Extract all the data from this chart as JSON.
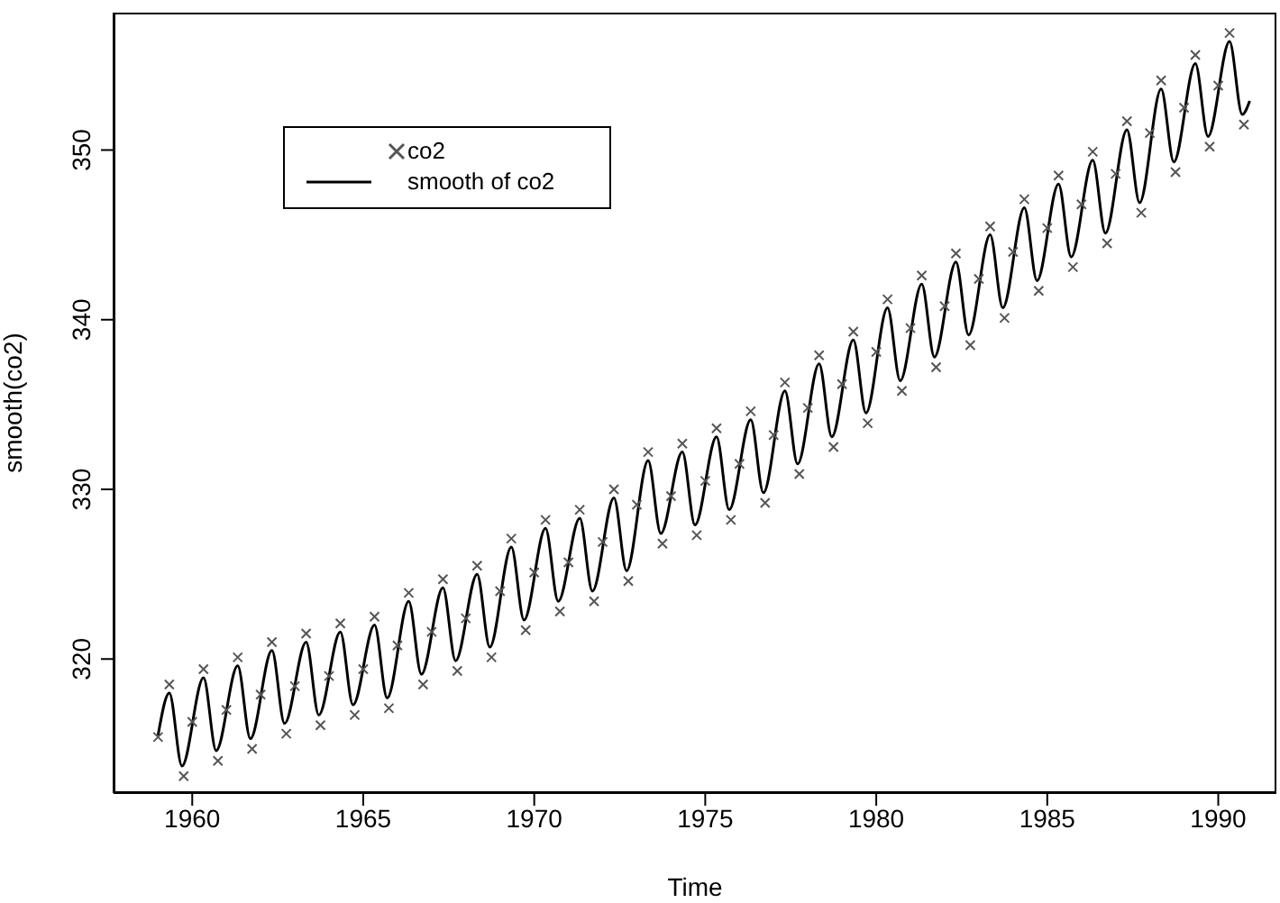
{
  "chart_data": {
    "type": "scatter",
    "xlabel": "Time",
    "ylabel": "smooth(co2)",
    "xlim": [
      1957.7,
      1991.7
    ],
    "xticks": [
      1960,
      1965,
      1970,
      1975,
      1980,
      1985,
      1990
    ],
    "ylim": [
      312.1,
      358.1
    ],
    "yticks": [
      320,
      330,
      340,
      350
    ],
    "legend": "top left",
    "grid": false,
    "series": [
      {
        "name": "co2",
        "type": "scatter",
        "marker": "cross",
        "color": "#555555",
        "x": [
          1959,
          1959.33,
          1959.75,
          1960,
          1960.33,
          1960.75,
          1961,
          1961.33,
          1961.75,
          1962,
          1962.33,
          1962.75,
          1963,
          1963.33,
          1963.75,
          1964,
          1964.33,
          1964.75,
          1965,
          1965.33,
          1965.75,
          1966,
          1966.33,
          1966.75,
          1967,
          1967.33,
          1967.75,
          1968,
          1968.33,
          1968.75,
          1969,
          1969.33,
          1969.75,
          1970,
          1970.33,
          1970.75,
          1971,
          1971.33,
          1971.75,
          1972,
          1972.33,
          1972.75,
          1973,
          1973.33,
          1973.75,
          1974,
          1974.33,
          1974.75,
          1975,
          1975.33,
          1975.75,
          1976,
          1976.33,
          1976.75,
          1977,
          1977.33,
          1977.75,
          1978,
          1978.33,
          1978.75,
          1979,
          1979.33,
          1979.75,
          1980,
          1980.33,
          1980.75,
          1981,
          1981.33,
          1981.75,
          1982,
          1982.33,
          1982.75,
          1983,
          1983.33,
          1983.75,
          1984,
          1984.33,
          1984.75,
          1985,
          1985.33,
          1985.75,
          1986,
          1986.33,
          1986.75,
          1987,
          1987.33,
          1987.75,
          1988,
          1988.33,
          1988.75,
          1989,
          1989.33,
          1989.75,
          1990,
          1990.33,
          1990.75
        ],
        "values": [
          315.4,
          318.5,
          313.1,
          316.3,
          319.4,
          314.0,
          317.0,
          320.1,
          314.7,
          317.9,
          321.0,
          315.6,
          318.4,
          321.5,
          316.1,
          319.0,
          322.1,
          316.7,
          319.4,
          322.5,
          317.1,
          320.8,
          323.9,
          318.5,
          321.6,
          324.7,
          319.3,
          322.4,
          325.5,
          320.1,
          324.0,
          327.1,
          321.7,
          325.1,
          328.2,
          322.8,
          325.7,
          328.8,
          323.4,
          326.9,
          330.0,
          324.6,
          329.1,
          332.2,
          326.8,
          329.6,
          332.7,
          327.3,
          330.5,
          333.6,
          328.2,
          331.5,
          334.6,
          329.2,
          333.2,
          336.3,
          330.9,
          334.8,
          337.9,
          332.5,
          336.2,
          339.3,
          333.9,
          338.1,
          341.2,
          335.8,
          339.5,
          342.6,
          337.2,
          340.8,
          343.9,
          338.5,
          342.4,
          345.5,
          340.1,
          344.0,
          347.1,
          341.7,
          345.4,
          348.5,
          343.1,
          346.8,
          349.9,
          344.5,
          348.6,
          351.7,
          346.3,
          351.0,
          354.1,
          348.7,
          352.5,
          355.6,
          350.2,
          353.8,
          356.9,
          351.5
        ]
      },
      {
        "name": "smooth of co2",
        "type": "line",
        "color": "#000000",
        "x": [
          1959,
          1959.33,
          1959.7,
          1960.33,
          1960.7,
          1961.33,
          1961.7,
          1962.33,
          1962.7,
          1963.33,
          1963.7,
          1964.33,
          1964.7,
          1965.33,
          1965.7,
          1966.33,
          1966.7,
          1967.33,
          1967.7,
          1968.33,
          1968.7,
          1969.33,
          1969.7,
          1970.33,
          1970.7,
          1971.33,
          1971.7,
          1972.33,
          1972.7,
          1973.33,
          1973.7,
          1974.33,
          1974.7,
          1975.33,
          1975.7,
          1976.33,
          1976.7,
          1977.33,
          1977.7,
          1978.33,
          1978.7,
          1979.33,
          1979.7,
          1980.33,
          1980.7,
          1981.33,
          1981.7,
          1982.33,
          1982.7,
          1983.33,
          1983.7,
          1984.33,
          1984.7,
          1985.33,
          1985.7,
          1986.33,
          1986.7,
          1987.33,
          1987.7,
          1988.33,
          1988.7,
          1989.33,
          1989.7,
          1990.33,
          1990.7,
          1990.92
        ],
        "values": [
          315.5,
          318.0,
          313.7,
          318.9,
          314.6,
          319.6,
          315.3,
          320.5,
          316.2,
          321.0,
          316.7,
          321.6,
          317.3,
          322.0,
          317.7,
          323.4,
          319.1,
          324.2,
          319.9,
          325.0,
          320.7,
          326.6,
          322.3,
          327.7,
          323.4,
          328.3,
          324.0,
          329.5,
          325.2,
          331.7,
          327.4,
          332.2,
          327.9,
          333.1,
          328.8,
          334.1,
          329.8,
          335.8,
          331.5,
          337.4,
          333.1,
          338.8,
          334.5,
          340.7,
          336.4,
          342.1,
          337.8,
          343.4,
          339.1,
          345.0,
          340.7,
          346.6,
          342.3,
          348.0,
          343.7,
          349.4,
          345.1,
          351.2,
          346.9,
          353.6,
          349.3,
          355.1,
          350.8,
          356.4,
          352.1,
          352.9
        ]
      }
    ]
  }
}
